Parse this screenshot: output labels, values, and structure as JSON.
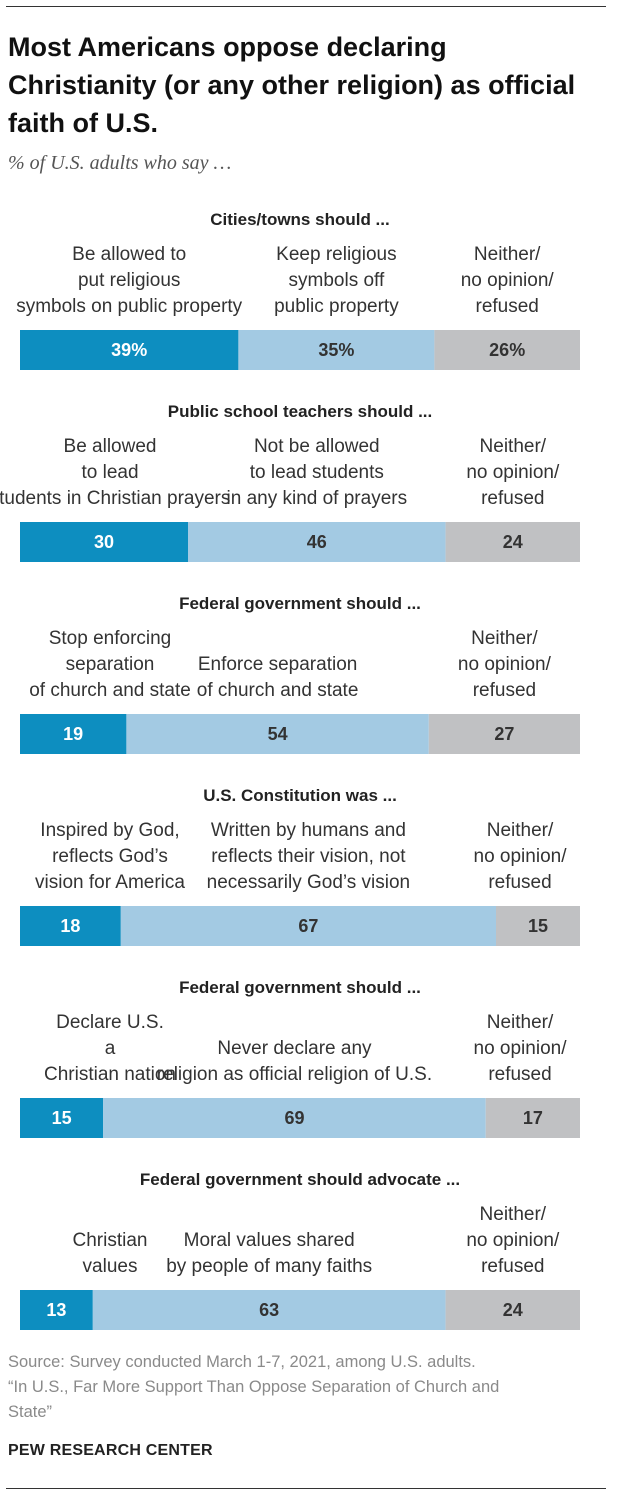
{
  "title": "Most Americans oppose declaring Christianity (or any other religion) as official faith of U.S.",
  "subtitle": "% of U.S. adults who say …",
  "colors": {
    "dark": "#0d8ec0",
    "light": "#a3cae3",
    "gray": "#c0c1c3"
  },
  "chart_data": [
    {
      "type": "bar",
      "stacked": true,
      "orientation": "horizontal",
      "xlim": [
        0,
        100
      ],
      "title": "Cities/towns should ...",
      "categories": [
        "Be allowed to put religious symbols on public property",
        "Keep religious symbols off public property",
        "Neither/ no opinion/ refused"
      ],
      "values": [
        39,
        35,
        26
      ],
      "value_labels": [
        "39%",
        "35%",
        "26%"
      ]
    },
    {
      "type": "bar",
      "stacked": true,
      "orientation": "horizontal",
      "xlim": [
        0,
        100
      ],
      "title": "Public school teachers should ...",
      "categories": [
        "Be allowed to lead students in Christian prayers",
        "Not be allowed to lead students in any kind of prayers",
        "Neither/ no opinion/ refused"
      ],
      "values": [
        30,
        46,
        24
      ],
      "value_labels": [
        "30",
        "46",
        "24"
      ]
    },
    {
      "type": "bar",
      "stacked": true,
      "orientation": "horizontal",
      "xlim": [
        0,
        100
      ],
      "title": "Federal government should ...",
      "categories": [
        "Stop enforcing separation of church and state",
        "Enforce separation of church and state",
        "Neither/ no opinion/ refused"
      ],
      "values": [
        19,
        54,
        27
      ],
      "value_labels": [
        "19",
        "54",
        "27"
      ]
    },
    {
      "type": "bar",
      "stacked": true,
      "orientation": "horizontal",
      "xlim": [
        0,
        100
      ],
      "title": "U.S. Constitution was ...",
      "categories": [
        "Inspired by God, reflects God’s vision for America",
        "Written by humans and reflects their vision, not necessarily God’s vision",
        "Neither/ no opinion/ refused"
      ],
      "values": [
        18,
        67,
        15
      ],
      "value_labels": [
        "18",
        "67",
        "15"
      ]
    },
    {
      "type": "bar",
      "stacked": true,
      "orientation": "horizontal",
      "xlim": [
        0,
        100
      ],
      "title": "Federal government should ...",
      "categories": [
        "Declare U.S. a Christian nation",
        "Never declare any religion as official religion of U.S.",
        "Neither/ no opinion/ refused"
      ],
      "values": [
        15,
        69,
        17
      ],
      "value_labels": [
        "15",
        "69",
        "17"
      ]
    },
    {
      "type": "bar",
      "stacked": true,
      "orientation": "horizontal",
      "xlim": [
        0,
        100
      ],
      "title": "Federal government should advocate ...",
      "categories": [
        "Christian values",
        "Moral values shared by people of many faiths",
        "Neither/ no opinion/ refused"
      ],
      "values": [
        13,
        63,
        24
      ],
      "value_labels": [
        "13",
        "63",
        "24"
      ]
    }
  ],
  "source_lines": [
    "Source: Survey conducted March 1-7, 2021, among U.S. adults.",
    "“In U.S., Far More Support Than Oppose Separation of Church and",
    "State”"
  ],
  "logo": "PEW RESEARCH CENTER"
}
